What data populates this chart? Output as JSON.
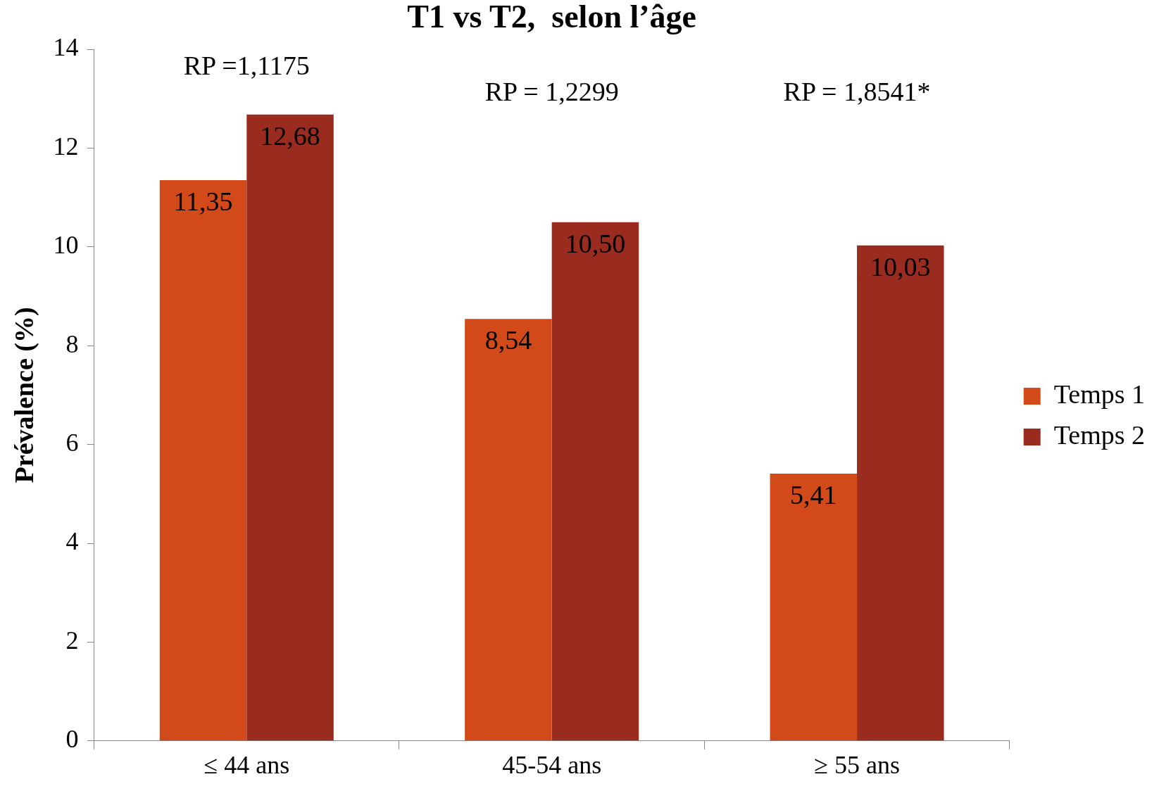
{
  "chart_data": {
    "type": "bar",
    "title": "T1 vs T2,  selon l’âge",
    "ylabel": "Prévalence (%)",
    "categories": [
      "≤ 44 ans",
      "45-54 ans",
      "≥ 55 ans"
    ],
    "series": [
      {
        "name": "Temps 1",
        "color": "#d24a19",
        "values": [
          11.35,
          8.54,
          5.41
        ],
        "value_labels": [
          "11,35",
          "8,54",
          "5,41"
        ]
      },
      {
        "name": "Temps 2",
        "color": "#9a2b1f",
        "values": [
          12.68,
          10.5,
          10.03
        ],
        "value_labels": [
          "12,68",
          "10,50",
          "10,03"
        ]
      }
    ],
    "ylim": [
      0,
      14
    ],
    "yticks": [
      0,
      2,
      4,
      6,
      8,
      10,
      12,
      14
    ],
    "grid": false,
    "legend": "right",
    "annotations": [
      "RP =1,1175",
      "RP = 1,2299",
      "RP = 1,8541*"
    ]
  }
}
